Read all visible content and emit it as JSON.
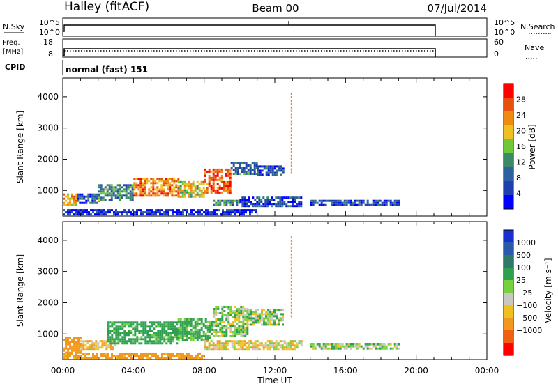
{
  "header": {
    "station": "Halley (fitACF)",
    "beam": "Beam 00",
    "date": "07/Jul/2014"
  },
  "top_panels": {
    "nsky": {
      "label": "N.Sky",
      "ticks": [
        "10^5",
        "10^0"
      ],
      "right_ticks": [
        "10^5",
        "10^0"
      ],
      "right_label": "N.Search"
    },
    "freq": {
      "label_line1": "Freq.",
      "label_line2": "[MHz]",
      "ticks": [
        "18",
        "8"
      ],
      "right_ticks": [
        "60",
        "0"
      ],
      "right_label": "Nave"
    },
    "cpid": {
      "label": "CPID",
      "value": "normal (fast) 151"
    }
  },
  "x_axis": {
    "label": "Time UT",
    "ticks": [
      "00:00",
      "04:00",
      "08:00",
      "12:00",
      "16:00",
      "20:00",
      "00:00"
    ]
  },
  "y_axis": {
    "label": "Slant Range [km]",
    "ticks": [
      "1000",
      "2000",
      "3000",
      "4000"
    ]
  },
  "colors": {
    "power": [
      "#0000ff",
      "#1e3fb0",
      "#2e5f9e",
      "#3a8a6a",
      "#6ec83a",
      "#f0c020",
      "#f08a10",
      "#e85010",
      "#ff0000"
    ],
    "velocity": [
      "#1a2fd0",
      "#2a5aa8",
      "#2e7a6a",
      "#2ea050",
      "#78d040",
      "#c8c8c0",
      "#f0c020",
      "#f09820",
      "#f06010",
      "#ff0000"
    ]
  },
  "chart_data": [
    {
      "type": "heatmap",
      "name": "power",
      "xlabel": "Time UT",
      "ylabel": "Slant Range [km]",
      "xlim": [
        0,
        24
      ],
      "ylim": [
        180,
        4600
      ],
      "colorbar": {
        "label": "Power [dB]",
        "ticks": [
          "4",
          "8",
          "12",
          "16",
          "20",
          "24",
          "28"
        ],
        "range": [
          0,
          32
        ]
      },
      "regions": [
        {
          "t0": 0.0,
          "t1": 0.8,
          "r0": 500,
          "r1": 900,
          "value": 22
        },
        {
          "t0": 0.8,
          "t1": 2.0,
          "r0": 600,
          "r1": 900,
          "value": 8
        },
        {
          "t0": 2.0,
          "t1": 4.0,
          "r0": 700,
          "r1": 1200,
          "value": 12
        },
        {
          "t0": 4.0,
          "t1": 6.5,
          "r0": 800,
          "r1": 1400,
          "value": 24
        },
        {
          "t0": 6.5,
          "t1": 8.0,
          "r0": 800,
          "r1": 1300,
          "value": 18
        },
        {
          "t0": 8.0,
          "t1": 9.5,
          "r0": 900,
          "r1": 1700,
          "value": 26
        },
        {
          "t0": 9.5,
          "t1": 11.0,
          "r0": 1500,
          "r1": 1900,
          "value": 10
        },
        {
          "t0": 11.0,
          "t1": 12.5,
          "r0": 1500,
          "r1": 1800,
          "value": 6
        },
        {
          "t0": 8.5,
          "t1": 10.0,
          "r0": 500,
          "r1": 700,
          "value": 12
        },
        {
          "t0": 10.0,
          "t1": 13.5,
          "r0": 500,
          "r1": 800,
          "value": 6
        },
        {
          "t0": 14.0,
          "t1": 19.0,
          "r0": 500,
          "r1": 700,
          "value": 6
        },
        {
          "t0": 0.0,
          "t1": 11.0,
          "r0": 250,
          "r1": 400,
          "value": 4
        }
      ]
    },
    {
      "type": "heatmap",
      "name": "velocity",
      "xlabel": "Time UT",
      "ylabel": "Slant Range [km]",
      "xlim": [
        0,
        24
      ],
      "ylim": [
        180,
        4600
      ],
      "colorbar": {
        "label": "Velocity [m s⁻¹]",
        "ticks": [
          "1000",
          "500",
          "100",
          "25",
          "−25",
          "−100",
          "−500",
          "−1000"
        ]
      },
      "regions": [
        {
          "t0": 0.0,
          "t1": 1.0,
          "r0": 400,
          "r1": 900,
          "value": -300
        },
        {
          "t0": 1.0,
          "t1": 3.0,
          "r0": 500,
          "r1": 800,
          "value": -80
        },
        {
          "t0": 2.5,
          "t1": 6.5,
          "r0": 700,
          "r1": 1400,
          "value": 200
        },
        {
          "t0": 6.5,
          "t1": 8.5,
          "r0": 800,
          "r1": 1500,
          "value": 150
        },
        {
          "t0": 8.5,
          "t1": 10.5,
          "r0": 900,
          "r1": 1900,
          "value": 60
        },
        {
          "t0": 10.5,
          "t1": 12.5,
          "r0": 1300,
          "r1": 1800,
          "value": 60
        },
        {
          "t0": 8.0,
          "t1": 13.5,
          "r0": 500,
          "r1": 800,
          "value": -50
        },
        {
          "t0": 14.0,
          "t1": 19.0,
          "r0": 500,
          "r1": 700,
          "value": 60
        },
        {
          "t0": 0.0,
          "t1": 8.0,
          "r0": 250,
          "r1": 400,
          "value": -200
        }
      ]
    }
  ]
}
